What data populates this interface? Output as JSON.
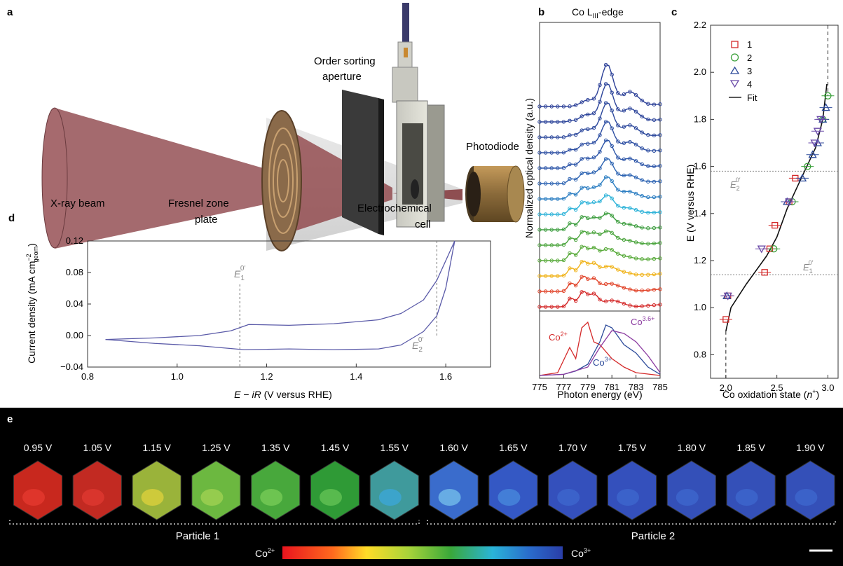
{
  "panel_a": {
    "letter": "a",
    "labels": {
      "xray": "X-ray beam",
      "fzp_line1": "Fresnel zone",
      "fzp_line2": "plate",
      "osa_line1": "Order sorting",
      "osa_line2": "aperture",
      "cell_line1": "Electrochemical",
      "cell_line2": "cell",
      "photodiode": "Photodiode"
    }
  },
  "panel_b": {
    "letter": "b",
    "title_main": "Co L",
    "title_sub": "III",
    "title_end": "-edge",
    "ylabel": "Normalized optical density (a.u.)",
    "xlabel": "Photon energy (eV)",
    "ticks": [
      "775",
      "777",
      "779",
      "781",
      "783",
      "785"
    ],
    "ref_labels": {
      "co2": "Co",
      "co2_sup": "2+",
      "co3": "Co",
      "co3_sup": "3+",
      "co36": "Co",
      "co36_sup": "3.6+"
    },
    "spectrum_colors": [
      "#d42a2a",
      "#e1452b",
      "#f0b31a",
      "#58aa3a",
      "#4aa43c",
      "#3e9e40",
      "#2cb2d8",
      "#2c7ec2",
      "#2c63b2",
      "#2c55a8",
      "#2c4ea2",
      "#2c489c",
      "#2c449a",
      "#2c4098"
    ],
    "ref_colors": {
      "co2": "#d42a2a",
      "co3": "#2c4a9a",
      "co36": "#8a3aa0"
    }
  },
  "panel_c": {
    "letter": "c",
    "xlabel": "Co oxidation state (",
    "xlabel_var": "n",
    "xlabel_sup": "+",
    "xlabel_end": ")",
    "ylabel": "E (V versus RHE)",
    "xticks": [
      "2.0",
      "2.5",
      "3.0"
    ],
    "yticks": [
      "0.8",
      "1.0",
      "1.2",
      "1.4",
      "1.6",
      "1.8",
      "2.0",
      "2.2"
    ],
    "e1_label": "E",
    "e1_sub": "1",
    "e1_sup": "0′",
    "e2_label": "E",
    "e2_sub": "2",
    "e2_sup": "0′",
    "legend": [
      "1",
      "2",
      "3",
      "4",
      "Fit"
    ],
    "colors": {
      "s1": "#d42a2a",
      "s2": "#3aa03a",
      "s3": "#2c4a9a",
      "s4": "#6a4aa8"
    }
  },
  "panel_d": {
    "letter": "d",
    "ylabel_main": "Current density (mA cm",
    "ylabel_sup": "−2",
    "ylabel_sub": "geom",
    "ylabel_end": ")",
    "xlabel_E": "E",
    "xlabel_minus": " − ",
    "xlabel_iR": "iR",
    "xlabel_end": " (V versus RHE)",
    "xticks": [
      "0.8",
      "1.0",
      "1.2",
      "1.4",
      "1.6"
    ],
    "yticks": [
      "0.12",
      "0.08",
      "0.04",
      "0.00",
      "−0.04"
    ],
    "e1_label": "E",
    "e1_sub": "1",
    "e1_sup": "0′",
    "e2_label": "E",
    "e2_sub": "2",
    "e2_sup": "0′",
    "curve_color": "#5a5aa8"
  },
  "panel_e": {
    "letter": "e",
    "voltages": [
      "0.95 V",
      "1.05 V",
      "1.15 V",
      "1.25 V",
      "1.35 V",
      "1.45 V",
      "1.55 V",
      "1.60 V",
      "1.65 V",
      "1.70 V",
      "1.75 V",
      "1.80 V",
      "1.85 V",
      "1.90 V"
    ],
    "particle1": "Particle 1",
    "particle2": "Particle 2",
    "scale_left": "Co",
    "scale_left_sup": "2+",
    "scale_right": "Co",
    "scale_right_sup": "3+",
    "hex_colors": [
      "#c8281e",
      "#c22a22",
      "#9ab33a",
      "#6cb840",
      "#48a83c",
      "#2f9a36",
      "#3f9a9c",
      "#3a6ccc",
      "#3458c4",
      "#3450bc",
      "#3450bc",
      "#3450b8",
      "#3450b8",
      "#3450b8"
    ],
    "highlight_colors": [
      "#e83a30",
      "#e23a32",
      "#e4d43c",
      "#a6d454",
      "#7ed05a",
      "#6ac858",
      "#3ca8e0",
      "#7ac8ee",
      "#4a8ee0",
      "#3e6ad0",
      "#3e6ad0",
      "#3e6ad0",
      "#3e6ad0",
      "#3e6ad0"
    ]
  },
  "chart_data": [
    {
      "panel": "c",
      "type": "scatter",
      "xlabel": "Co oxidation state (n+)",
      "ylabel": "E (V versus RHE)",
      "xlim": [
        1.85,
        3.1
      ],
      "ylim": [
        0.7,
        2.2
      ],
      "reference_lines": {
        "E1": 1.14,
        "E2": 1.58,
        "x_dashed": 3.0
      },
      "series": [
        {
          "name": "1",
          "x": [
            2.0,
            2.02,
            2.38,
            2.43,
            2.48,
            2.62,
            2.68
          ],
          "y": [
            0.95,
            1.05,
            1.15,
            1.25,
            1.35,
            1.45,
            1.55
          ]
        },
        {
          "name": "2",
          "x": [
            2.47,
            2.65,
            2.8,
            2.95,
            3.0
          ],
          "y": [
            1.25,
            1.45,
            1.6,
            1.8,
            1.9
          ]
        },
        {
          "name": "3",
          "x": [
            2.01,
            2.6,
            2.75,
            2.85,
            2.9,
            2.95,
            2.98
          ],
          "y": [
            1.05,
            1.45,
            1.55,
            1.65,
            1.7,
            1.8,
            1.85
          ]
        },
        {
          "name": "4",
          "x": [
            2.02,
            2.35,
            2.62,
            2.87,
            2.9,
            2.93
          ],
          "y": [
            1.05,
            1.25,
            1.45,
            1.7,
            1.75,
            1.8
          ]
        }
      ],
      "fit": {
        "name": "Fit",
        "x": [
          2.0,
          2.05,
          2.2,
          2.4,
          2.5,
          2.6,
          2.75,
          2.88,
          2.95,
          2.99
        ],
        "y": [
          0.9,
          1.0,
          1.1,
          1.22,
          1.3,
          1.42,
          1.56,
          1.68,
          1.8,
          1.95
        ]
      }
    },
    {
      "panel": "d",
      "type": "line",
      "xlabel": "E − iR (V versus RHE)",
      "ylabel": "Current density (mA cm−2 geom)",
      "xlim": [
        0.8,
        1.7
      ],
      "ylim": [
        -0.04,
        0.12
      ],
      "reference_lines": {
        "E1": 1.14,
        "E2": 1.58
      },
      "series": [
        {
          "name": "anodic",
          "x": [
            0.84,
            0.95,
            1.05,
            1.12,
            1.16,
            1.25,
            1.35,
            1.45,
            1.5,
            1.55,
            1.58,
            1.6,
            1.62
          ],
          "y": [
            -0.005,
            -0.003,
            0.0,
            0.006,
            0.014,
            0.013,
            0.015,
            0.02,
            0.028,
            0.045,
            0.07,
            0.095,
            0.12
          ]
        },
        {
          "name": "cathodic",
          "x": [
            1.62,
            1.6,
            1.58,
            1.55,
            1.5,
            1.45,
            1.35,
            1.25,
            1.15,
            1.05,
            0.95,
            0.84
          ],
          "y": [
            0.12,
            0.06,
            0.025,
            0.005,
            -0.012,
            -0.017,
            -0.018,
            -0.017,
            -0.018,
            -0.013,
            -0.01,
            -0.005
          ]
        }
      ]
    },
    {
      "panel": "b",
      "type": "line",
      "xlabel": "Photon energy (eV)",
      "ylabel": "Normalized optical density (a.u.)",
      "xlim": [
        775,
        785
      ],
      "series": [
        {
          "name": "Co2+",
          "x": [
            775,
            776.5,
            777.5,
            778,
            778.5,
            779,
            779.5,
            780,
            781,
            782,
            783,
            785
          ],
          "y": [
            0.0,
            0.05,
            0.5,
            0.3,
            0.85,
            0.95,
            0.6,
            0.55,
            0.3,
            0.15,
            0.05,
            0.0
          ]
        },
        {
          "name": "Co3+",
          "x": [
            775,
            777,
            778,
            779,
            780,
            780.5,
            781,
            782,
            783,
            784,
            785
          ],
          "y": [
            0.0,
            0.02,
            0.08,
            0.2,
            0.6,
            0.9,
            0.85,
            0.55,
            0.4,
            0.15,
            0.02
          ]
        },
        {
          "name": "Co3.6+",
          "x": [
            775,
            777,
            779,
            780,
            781,
            782,
            783,
            784,
            785
          ],
          "y": [
            0.0,
            0.02,
            0.15,
            0.5,
            0.8,
            0.75,
            0.6,
            0.35,
            0.05
          ]
        }
      ]
    }
  ]
}
